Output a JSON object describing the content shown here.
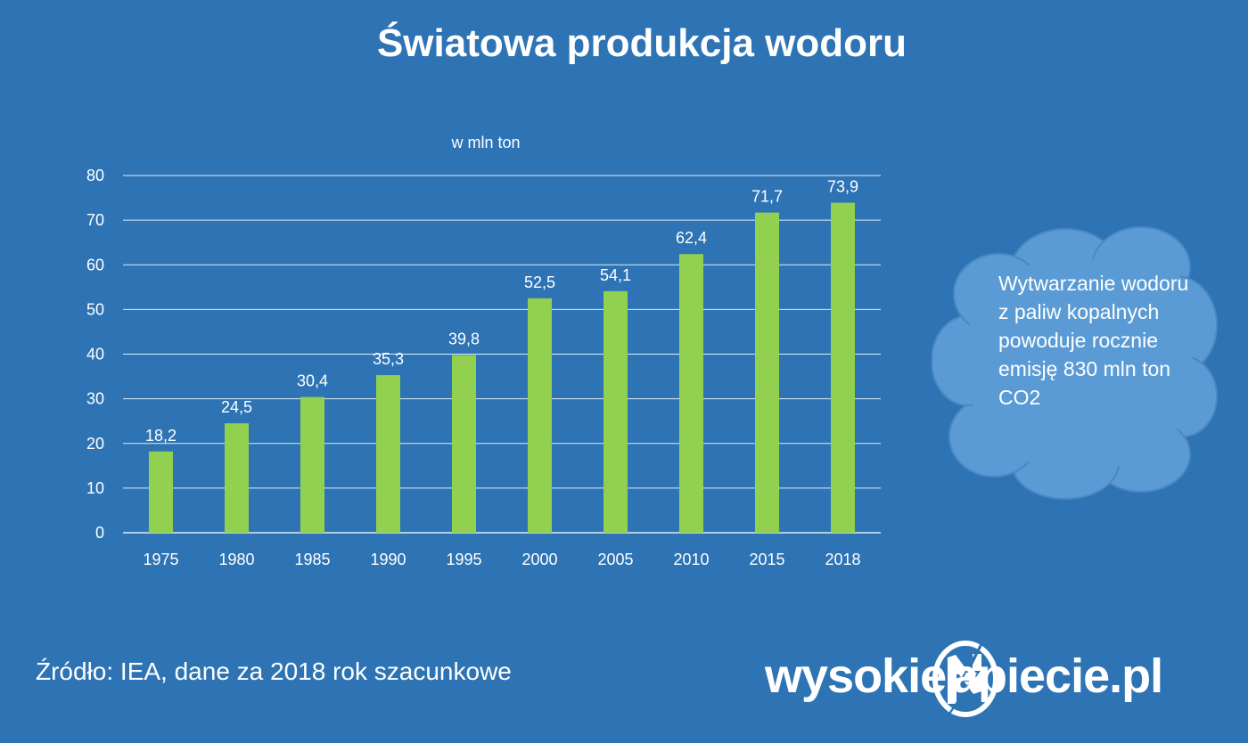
{
  "title": "Światowa produkcja wodoru",
  "chart_data": {
    "type": "bar",
    "unit_label": "w mln ton",
    "categories": [
      "1975",
      "1980",
      "1985",
      "1990",
      "1995",
      "2000",
      "2005",
      "2010",
      "2015",
      "2018"
    ],
    "values": [
      18.2,
      24.5,
      30.4,
      35.3,
      39.8,
      52.5,
      54.1,
      62.4,
      71.7,
      73.9
    ],
    "value_labels": [
      "18,2",
      "24,5",
      "30,4",
      "35,3",
      "39,8",
      "52,5",
      "54,1",
      "62,4",
      "71,7",
      "73,9"
    ],
    "ylim": [
      0,
      80
    ],
    "yticks": [
      0,
      10,
      20,
      30,
      40,
      50,
      60,
      70,
      80
    ],
    "grid": true,
    "bar_color": "#92d050",
    "grid_color": "#ffffff"
  },
  "callout": {
    "text": "Wytwarzanie wodoru z paliw kopalnych powoduje rocznie emisję 830 mln ton CO2",
    "fill_color": "#5b9bd5"
  },
  "source": "Źródło: IEA, dane za 2018 rok szacunkowe",
  "logo": {
    "left_text": "wysokie",
    "right_text": "apiecie.pl",
    "mark_icon": "lightning-n-icon"
  }
}
